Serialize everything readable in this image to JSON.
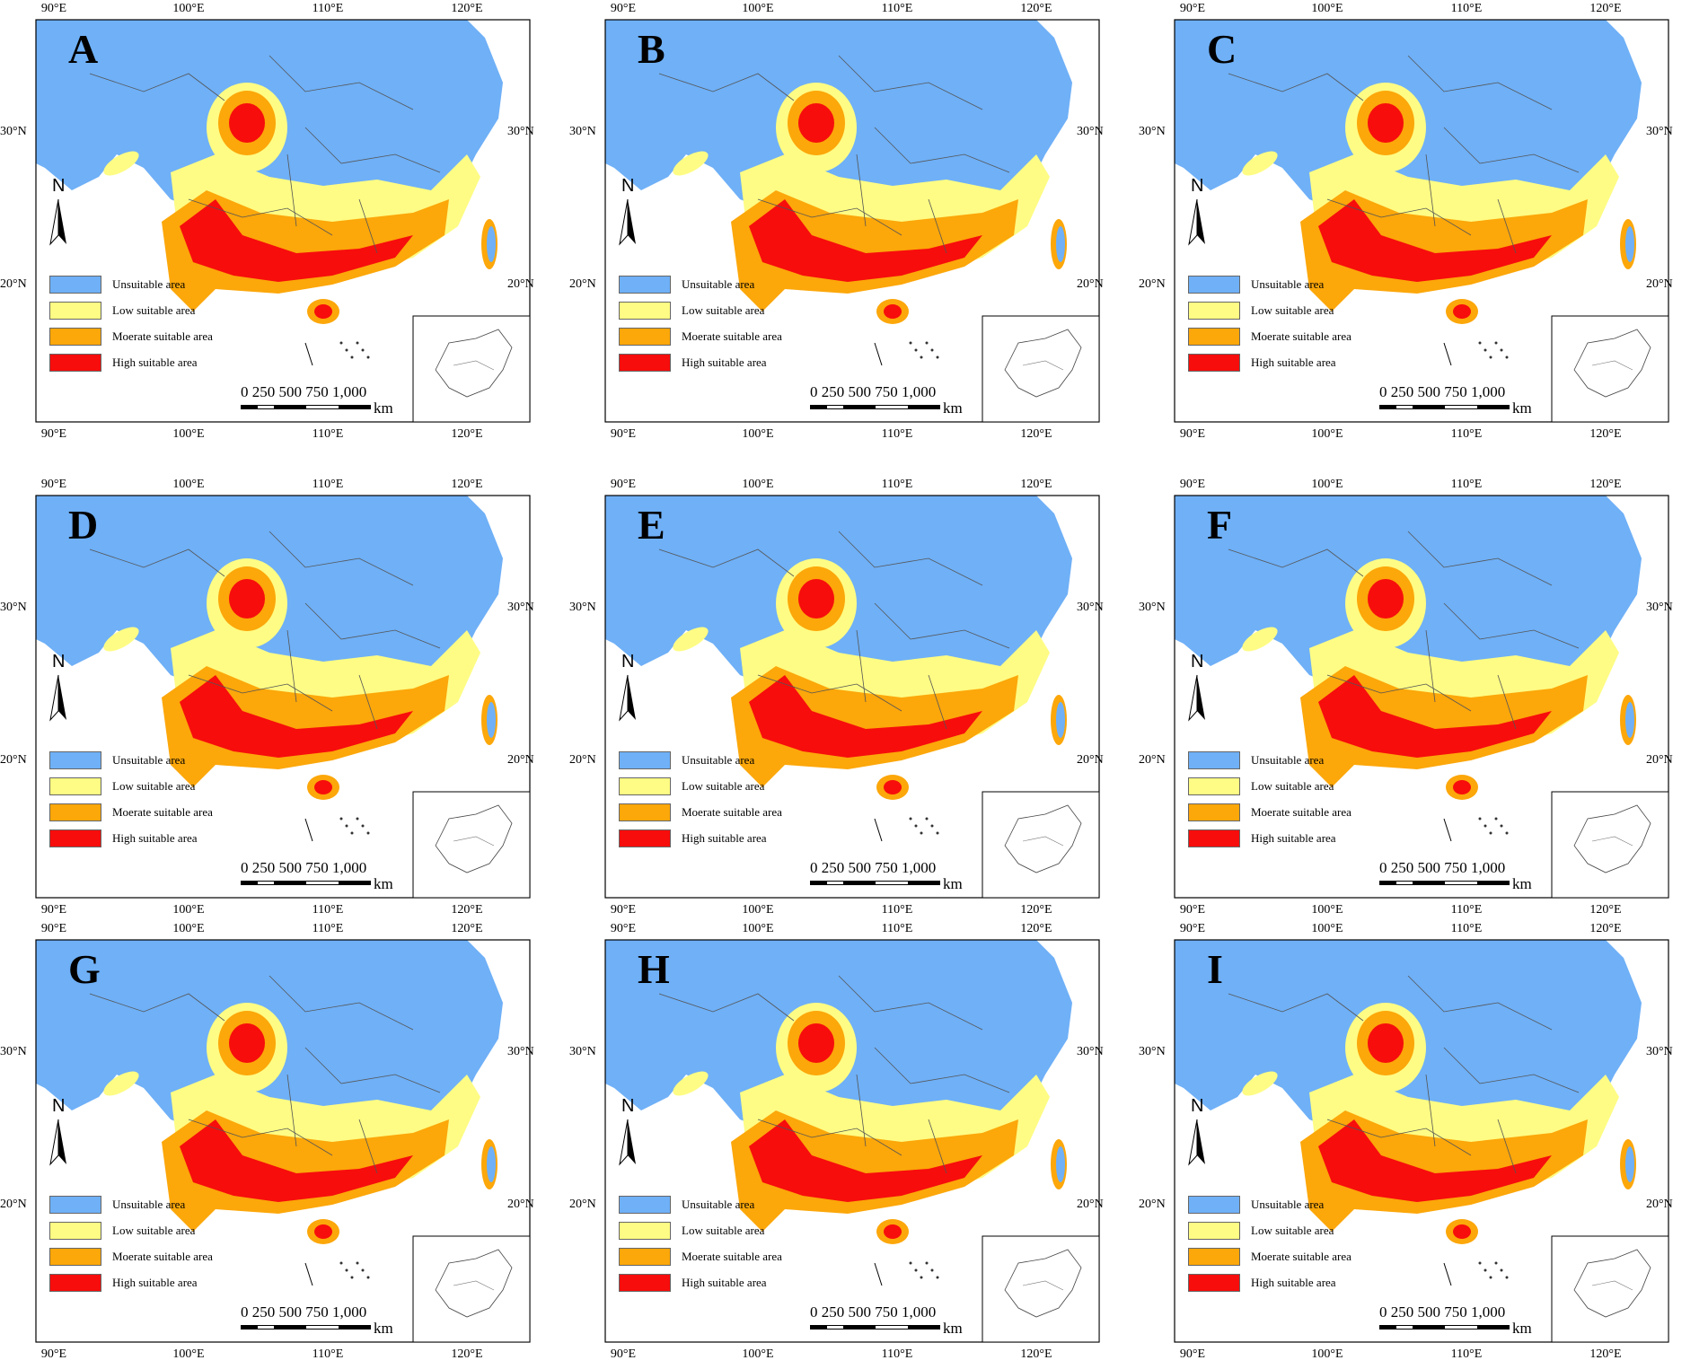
{
  "panels": [
    {
      "letter": "A"
    },
    {
      "letter": "B"
    },
    {
      "letter": "C"
    },
    {
      "letter": "D"
    },
    {
      "letter": "E"
    },
    {
      "letter": "F"
    },
    {
      "letter": "G"
    },
    {
      "letter": "H"
    },
    {
      "letter": "I"
    }
  ],
  "axes": {
    "lon_ticks": [
      "90°E",
      "100°E",
      "110°E",
      "120°E"
    ],
    "lat_ticks": [
      "30°N",
      "20°N"
    ]
  },
  "legend": [
    {
      "label": "Unsuitable area",
      "color": "#6fb0f7"
    },
    {
      "label": "Low suitable area",
      "color": "#fefc84"
    },
    {
      "label": "Moerate suitable area",
      "color": "#fca70a"
    },
    {
      "label": "High suitable area",
      "color": "#f70d0c"
    }
  ],
  "north_arrow": {
    "label": "N"
  },
  "scale_bar": {
    "numbers": "0   250  500  750 1,000",
    "unit": "km"
  },
  "colors": {
    "frame": "#000000",
    "border_lines": "#555555",
    "background": "#ffffff"
  }
}
